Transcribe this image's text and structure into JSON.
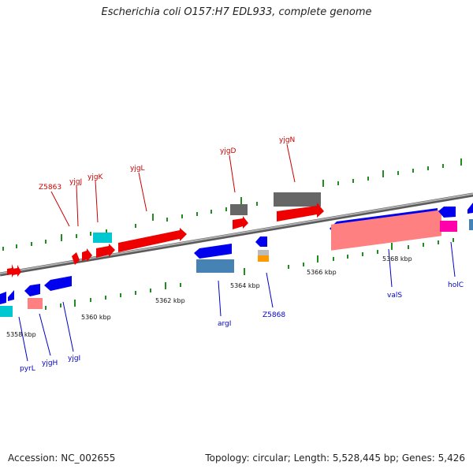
{
  "title": "Escherichia coli O157:H7 EDL933, complete genome",
  "footer": {
    "accession": "Accession: NC_002655",
    "summary": "Topology: circular; Length: 5,528,445 bp; Genes: 5,426"
  },
  "colors": {
    "forward_gene": "#ff0000",
    "reverse_gene": "#0000ff",
    "forward_cds": "#ff8080",
    "reverse_cds": "#4682b4",
    "rna": "#00cccc",
    "other": "#666666",
    "pseudo": "#ff9900",
    "backbone": "#888888",
    "tick": "#228b22"
  },
  "scale_labels": [
    "5358 kbp",
    "5360 kbp",
    "5362 kbp",
    "5364 kbp",
    "5366 kbp",
    "5368 kbp"
  ],
  "forward_labels": [
    "Z5863",
    "yjgJ",
    "yjgK",
    "yjgL",
    "yjgD",
    "yjgN"
  ],
  "reverse_labels": [
    "pyrL",
    "yjgH",
    "yjgI",
    "argI",
    "Z5868",
    "valS",
    "holC"
  ]
}
